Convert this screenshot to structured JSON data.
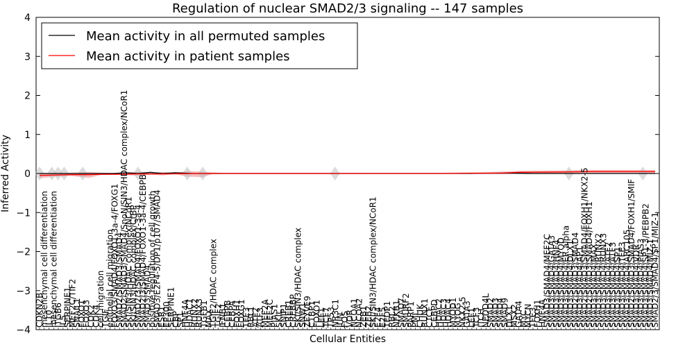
{
  "chart_data": {
    "type": "line",
    "title": "Regulation of nuclear SMAD2/3 signaling -- 147 samples",
    "xlabel": "Cellular Entities",
    "ylabel": "Inferred Activity",
    "ylim": [
      -4,
      4
    ],
    "yticks": [
      "−4",
      "−3",
      "−2",
      "−1",
      "0",
      "1",
      "2",
      "3",
      "4"
    ],
    "ytick_values": [
      -4,
      -3,
      -2,
      -1,
      0,
      1,
      2,
      3,
      4
    ],
    "legend": {
      "location": "top-left",
      "entries": [
        "Mean activity in all permuted samples",
        "Mean activity in patient samples"
      ]
    },
    "categories": [
      "CDKN2B",
      "mesenchymal cell differentiation",
      "IL10",
      "mesenchymal cell differentiation",
      "ITGB6",
      "IL5",
      "SERPINE1",
      "MEF2C/TIF2",
      "SNAIL1",
      "FOXO1",
      "FOXO3",
      "CDK2",
      "CDK4",
      "cell migration",
      "TGIF",
      "epithelial cell migration",
      "FOXO3/SMAD4/FOXO1-3a-4/FOXG1",
      "SMAD2/SMAD3/SMAD4",
      "SMAD2/SMAD3/SMAD4/SnoN/SIN3/HDAC complex/NCoR1",
      "SKI/SIN3/HDAC complex/NCoR1",
      "SKI/SIN3/HDAC complex/CtBP",
      "SMAD2/3/SMAD4/FOXO1-3a-4",
      "SMAD2/3/SMAD4/FOXO1-3a-4/CEBPB",
      "SMAD3/SMAD4",
      "positive regulation of cell growth",
      "SMAD3/E2F4-5/DP1/p107/SMAD4",
      "ESR1",
      "EP300",
      "SERPINE1",
      "CBP",
      "SP1",
      "HNF4A",
      "HDAC1",
      "RUNX2",
      "RUNX3",
      "TGFB1",
      "MAX",
      "TGIF2/HDAC complex",
      "TGIF2",
      "IFNB1",
      "CEBPB",
      "CEBPA",
      "FOXH1",
      "FOXG1",
      "TFE3",
      "RBL1",
      "ATF2",
      "ATF3",
      "MEF2A",
      "MEF2C",
      "PIAS1",
      "SKIL",
      "SNIP1",
      "CREB1",
      "CREBBP",
      "SKI/SIN3/HDAC complex",
      "SNW1",
      "ZFYVE9",
      "CTBP1",
      "FOXO1",
      "LEF1",
      "TCF7",
      "TP53",
      "NR3C1",
      "JUN",
      "FOS",
      "VDR",
      "NCOA1",
      "NCOA2",
      "ZEB1",
      "ZEB2",
      "SKI/SIN3/HDAC complex/NCoR1",
      "E2F4",
      "E2F5",
      "TFDP1",
      "RBL2",
      "NFKB1",
      "SMAD7",
      "SMURF2",
      "PARP1",
      "PML",
      "CHUK",
      "RUNX1",
      "CTCF",
      "CEBPD",
      "HDAC2",
      "HDAC3",
      "HDAC4",
      "MYOD1",
      "MYOG",
      "NKX2-5",
      "GATA3",
      "LEF1",
      "TCF3",
      "ITCH",
      "NEDD4L",
      "SMAD2",
      "SMAD3",
      "SMAD4",
      "SMAD9",
      "DLX1",
      "MSX2",
      "GATA4",
      "MYC",
      "MYCN",
      "TFE3",
      "FOXH1",
      "HNF4A",
      "SMAD3/SMAD4/MEF2C",
      "SMAD3/SMAD4/GATA3",
      "SMAD3/SMAD4/HNF4",
      "SMAD3/SMAD4/MYOD",
      "SMAD3/SMAD4/ER alpha",
      "SMAD3/SMAD4/DLX1",
      "SMAD2/SMAD3/SMAD4",
      "SMAD3/SMAD4/AP1",
      "SMAD2/SMAD3/SMAD4/FOXH1/NKX2-5",
      "SMAD2/SMAD3/SMAD4/FOXH1",
      "SMAD3/SMAD4/MAX",
      "SMAD3/SMAD4/RUNX2",
      "SMAD3/SMAD4/RUNX3",
      "SMAD3/SMAD4/ATF2",
      "SMAD3/SMAD4/ATF3",
      "SMAD3/SMAD4/SP1",
      "SMAD3/SMAD4/TFE3",
      "SMAD3/SMAD4/ARC105",
      "SMAD2/SMAD3/SMAD4/FOXH1/SMIF",
      "SMAD3/SMAD4/VDR",
      "SMAD3/SMAD4/PIAS3",
      "SMAD3/SMAD4/SP1-3/PEBPB2",
      "SMAD3/SMAD4/MIZ-1",
      "SMAD2/3/SMAD4/SP1/MIZ-1"
    ],
    "label_anchors": [
      0.0,
      0.02,
      0.03,
      0.04,
      0.07,
      0.16,
      0.24,
      0.265,
      0.48,
      0.86,
      0.98
    ],
    "series": [
      {
        "name": "Mean activity in all permuted samples",
        "color": "#000000",
        "x": [
          0.0,
          0.04,
          0.08,
          0.1,
          0.12,
          0.14,
          0.16,
          0.18,
          0.2,
          0.22,
          0.25,
          0.3,
          0.5,
          0.7,
          0.75,
          0.8,
          0.85,
          0.9,
          0.95,
          1.0
        ],
        "y": [
          0.0,
          0.0,
          0.0,
          0.0,
          0.0,
          0.02,
          0.0,
          0.03,
          0.0,
          0.02,
          0.0,
          0.0,
          0.0,
          0.0,
          0.01,
          0.0,
          0.0,
          0.0,
          0.0,
          0.0
        ]
      },
      {
        "name": "Mean activity in patient samples",
        "color": "#ff0000",
        "x": [
          0.0,
          0.02,
          0.05,
          0.08,
          0.1,
          0.13,
          0.16,
          0.2,
          0.25,
          0.3,
          0.5,
          0.65,
          0.75,
          0.78,
          0.85,
          0.9,
          0.95,
          1.0
        ],
        "y": [
          -0.05,
          -0.04,
          -0.03,
          -0.03,
          -0.02,
          -0.02,
          -0.01,
          -0.01,
          0.0,
          0.0,
          0.0,
          0.0,
          0.01,
          0.03,
          0.04,
          0.05,
          0.05,
          0.05
        ]
      }
    ],
    "band": {
      "name": "patient activity spread",
      "color": "#cc0000",
      "x": [
        0.0,
        0.03,
        0.05,
        0.08,
        0.1,
        0.13,
        0.16,
        0.18,
        0.2,
        0.22,
        0.24,
        0.265,
        0.28,
        0.3,
        0.5,
        0.65,
        0.7,
        0.75,
        0.78,
        0.85,
        0.9,
        0.95,
        1.0
      ],
      "lo": [
        -0.12,
        -0.08,
        -0.06,
        -0.11,
        -0.04,
        -0.03,
        -0.06,
        -0.03,
        -0.05,
        -0.02,
        -0.08,
        -0.09,
        -0.02,
        -0.01,
        -0.01,
        0.0,
        0.0,
        -0.02,
        0.0,
        0.0,
        0.0,
        0.0,
        0.0
      ],
      "hi": [
        0.02,
        0.0,
        0.02,
        0.04,
        0.02,
        0.01,
        0.05,
        0.02,
        0.04,
        0.02,
        0.06,
        0.05,
        0.03,
        0.02,
        0.02,
        0.02,
        0.03,
        0.05,
        0.07,
        0.08,
        0.09,
        0.09,
        0.09
      ]
    },
    "reference_line": {
      "y": 0,
      "style": "dotted"
    }
  }
}
